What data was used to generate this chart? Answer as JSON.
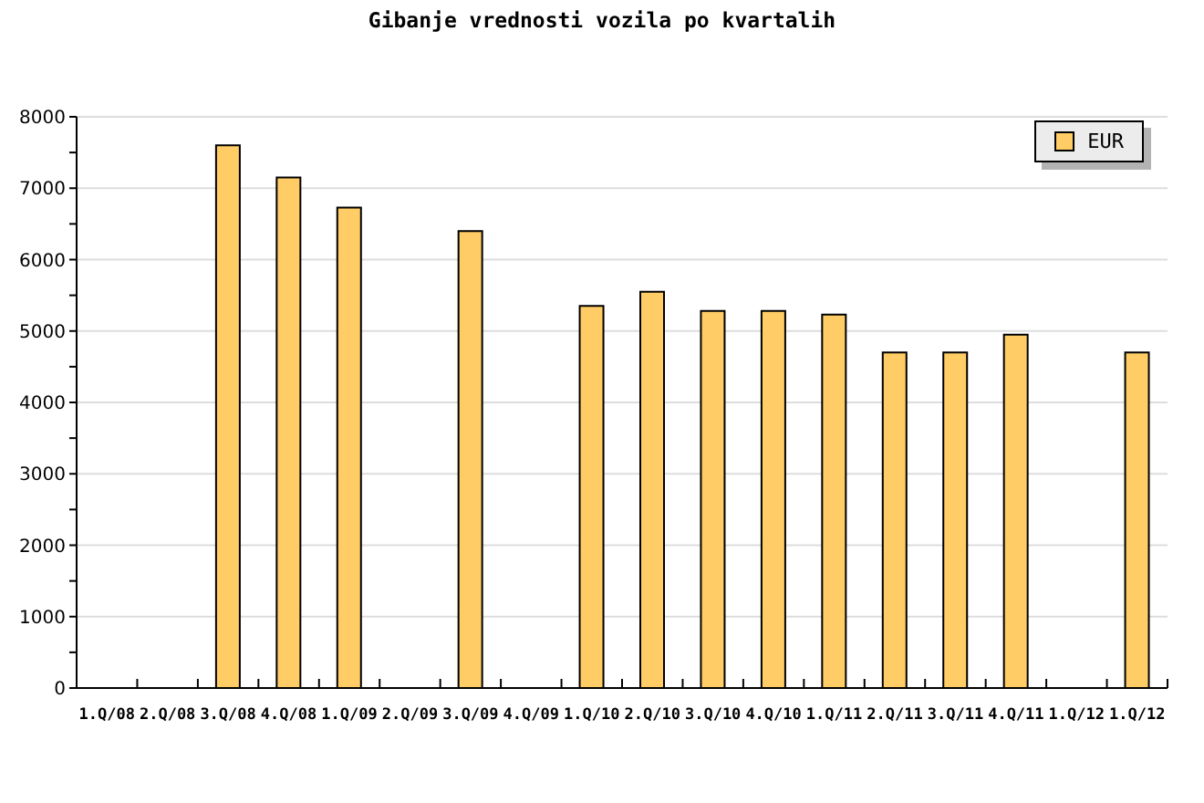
{
  "chart_data": {
    "type": "bar",
    "title": "Gibanje vrednosti vozila po kvartalih",
    "categories": [
      "1.Q/08",
      "2.Q/08",
      "3.Q/08",
      "4.Q/08",
      "1.Q/09",
      "2.Q/09",
      "3.Q/09",
      "4.Q/09",
      "1.Q/10",
      "2.Q/10",
      "3.Q/10",
      "4.Q/10",
      "1.Q/11",
      "2.Q/11",
      "3.Q/11",
      "4.Q/11",
      "1.Q/12",
      "1.Q/12"
    ],
    "series": [
      {
        "name": "EUR",
        "color": "#ffcc66",
        "values": [
          null,
          null,
          7600,
          7150,
          6730,
          null,
          6400,
          null,
          5350,
          5550,
          5280,
          5280,
          5230,
          4700,
          4700,
          4950,
          null,
          4700
        ]
      }
    ],
    "ylim": [
      0,
      8000
    ],
    "yticks": [
      0,
      {
        "value": 500,
        "label": null
      },
      1000,
      {
        "value": 1500,
        "label": null
      },
      2000,
      {
        "value": 2500,
        "label": null
      },
      3000,
      {
        "value": 3500,
        "label": null
      },
      4000,
      {
        "value": 4500,
        "label": null
      },
      5000,
      {
        "value": 5500,
        "label": null
      },
      6000,
      {
        "value": 6500,
        "label": null
      },
      7000,
      {
        "value": 7500,
        "label": null
      },
      8000
    ],
    "grid": "y",
    "legend": "top right"
  }
}
